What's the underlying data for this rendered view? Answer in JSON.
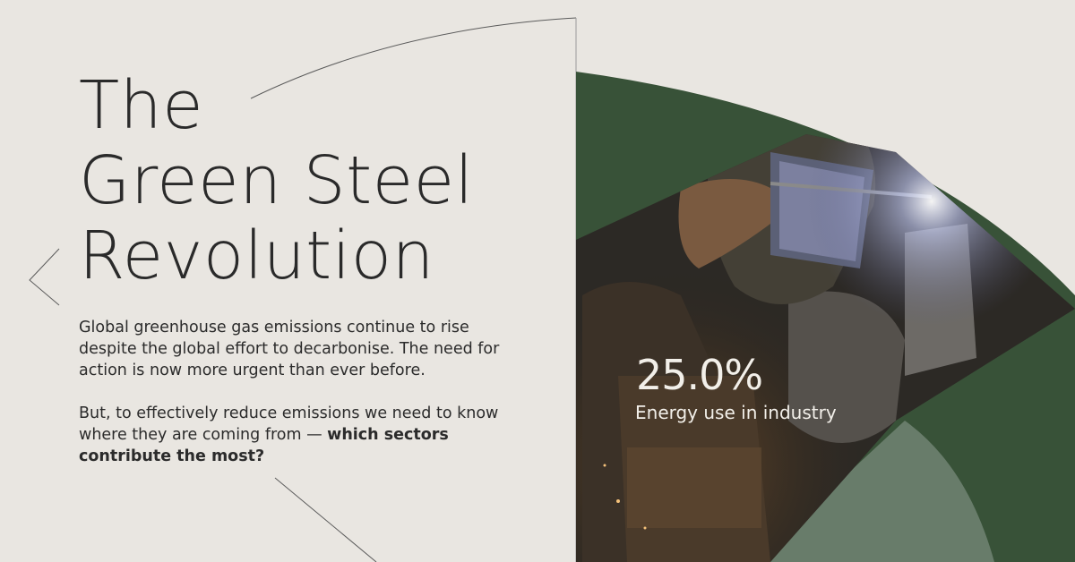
{
  "headline": {
    "line1": "The",
    "line2": "Green Steel",
    "line3": "Revolution"
  },
  "intro": {
    "paragraph1": "Global greenhouse gas emissions continue to rise despite the global effort to decarbonise. The need for action is now more urgent than ever before.",
    "paragraph2_lead": "But, to effectively reduce emissions we need to know where they are coming from — ",
    "paragraph2_emphasis": "which sectors contribute the most?"
  },
  "stat": {
    "value": "25.0%",
    "label": "Energy use in industry",
    "share": 0.25
  },
  "colors": {
    "background": "#e9e6e1",
    "dark_green": "#385238",
    "sage_green": "#687c6a",
    "text": "#2b2b2b",
    "stat_text": "#f2efe9"
  },
  "images": {
    "hero_photo": "welder-in-protective-helmet-and-gloves"
  }
}
